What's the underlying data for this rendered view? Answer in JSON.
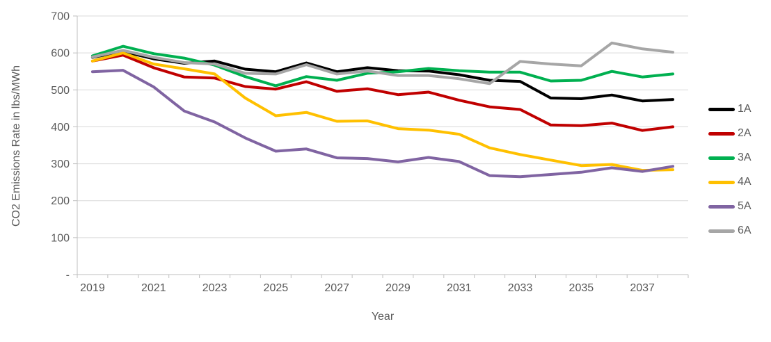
{
  "chart_data": {
    "type": "line",
    "title": "",
    "xlabel": "Year",
    "ylabel": "CO2 Emissions Rate in lbs/MWh",
    "x": [
      2019,
      2020,
      2021,
      2022,
      2023,
      2024,
      2025,
      2026,
      2027,
      2028,
      2029,
      2030,
      2031,
      2032,
      2033,
      2034,
      2035,
      2036,
      2037,
      2038
    ],
    "x_tick_years": [
      2019,
      2021,
      2023,
      2025,
      2027,
      2029,
      2031,
      2033,
      2035,
      2037
    ],
    "ylim": [
      0,
      700
    ],
    "y_ticks": [
      0,
      100,
      200,
      300,
      400,
      500,
      600,
      700
    ],
    "y_tick_labels": [
      "-",
      "100",
      "200",
      "300",
      "400",
      "500",
      "600",
      "700"
    ],
    "grid": "horizontal-only",
    "legend_position": "right",
    "series": [
      {
        "name": "1A",
        "color": "#000000",
        "values": [
          588,
          604,
          584,
          572,
          578,
          556,
          549,
          573,
          549,
          560,
          552,
          551,
          541,
          526,
          523,
          478,
          476,
          486,
          470,
          474
        ]
      },
      {
        "name": "2A",
        "color": "#C00000",
        "values": [
          578,
          594,
          560,
          535,
          532,
          509,
          502,
          522,
          496,
          503,
          487,
          494,
          472,
          454,
          447,
          405,
          403,
          410,
          390,
          400
        ]
      },
      {
        "name": "3A",
        "color": "#00B050",
        "values": [
          592,
          618,
          598,
          586,
          567,
          536,
          511,
          536,
          526,
          545,
          549,
          558,
          552,
          548,
          548,
          524,
          526,
          550,
          535,
          543
        ]
      },
      {
        "name": "4A",
        "color": "#FFC000",
        "values": [
          578,
          600,
          570,
          557,
          543,
          478,
          430,
          439,
          415,
          416,
          395,
          391,
          380,
          343,
          325,
          310,
          295,
          298,
          282,
          284
        ]
      },
      {
        "name": "5A",
        "color": "#8064A2",
        "values": [
          549,
          553,
          508,
          443,
          413,
          370,
          334,
          340,
          316,
          314,
          305,
          317,
          306,
          268,
          265,
          271,
          277,
          289,
          279,
          293
        ]
      },
      {
        "name": "6A",
        "color": "#A6A6A6",
        "values": [
          589,
          607,
          588,
          574,
          570,
          545,
          543,
          568,
          543,
          551,
          539,
          539,
          530,
          517,
          577,
          570,
          565,
          627,
          611,
          602
        ]
      }
    ],
    "style": {
      "gridline_color": "#D9D9D9",
      "axis_line_color": "#BFBFBF",
      "tick_text_color": "#595959",
      "line_width": 4
    }
  }
}
